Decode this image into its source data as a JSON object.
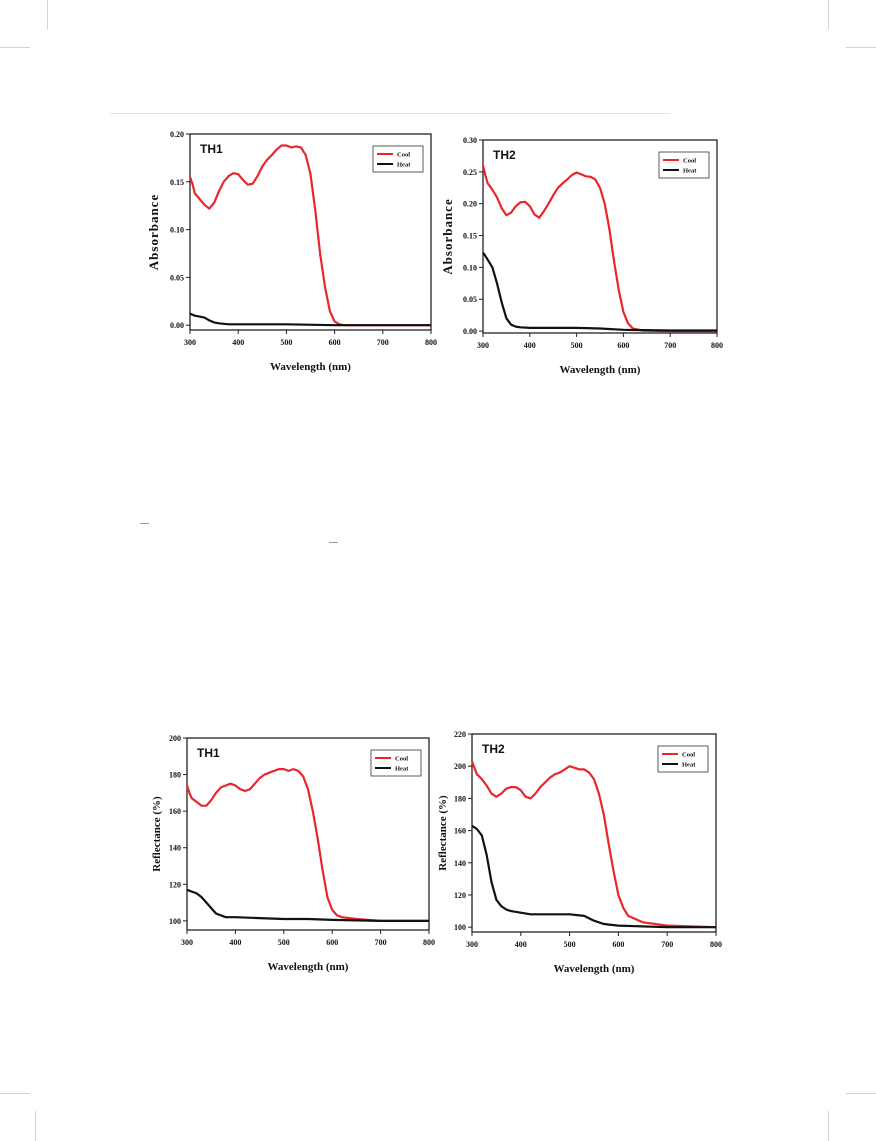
{
  "colors": {
    "cool": "#e8262b",
    "heat": "#111111",
    "frame": "#222222"
  },
  "chart_data": [
    {
      "type": "line",
      "panel_label": "TH1",
      "xlabel": "Wavelength (nm)",
      "ylabel": "Absorbance",
      "xlim": [
        300,
        800
      ],
      "ylim": [
        -0.005,
        0.2
      ],
      "xticks": [
        "300",
        "400",
        "500",
        "600",
        "700",
        "800"
      ],
      "xtick_values": [
        300,
        400,
        500,
        600,
        700,
        800
      ],
      "yticks": [
        "0.00",
        "0.05",
        "0.10",
        "0.15",
        "0.20"
      ],
      "ytick_values": [
        0,
        0.05,
        0.1,
        0.15,
        0.2
      ],
      "legend_position": "top-right",
      "series": [
        {
          "name": "Cool",
          "color": "#e8262b",
          "x": [
            300,
            305,
            310,
            320,
            330,
            340,
            350,
            360,
            370,
            380,
            390,
            400,
            410,
            420,
            430,
            440,
            450,
            460,
            470,
            480,
            490,
            500,
            510,
            520,
            530,
            540,
            550,
            560,
            570,
            580,
            590,
            600,
            610,
            620,
            650,
            700,
            800
          ],
          "y": [
            0.155,
            0.148,
            0.138,
            0.132,
            0.126,
            0.122,
            0.128,
            0.14,
            0.15,
            0.156,
            0.159,
            0.158,
            0.152,
            0.147,
            0.148,
            0.156,
            0.166,
            0.173,
            0.178,
            0.184,
            0.188,
            0.188,
            0.186,
            0.187,
            0.186,
            0.178,
            0.158,
            0.12,
            0.075,
            0.04,
            0.015,
            0.004,
            0.001,
            0,
            0,
            0,
            0
          ]
        },
        {
          "name": "Heat",
          "color": "#111111",
          "x": [
            300,
            310,
            320,
            330,
            340,
            350,
            360,
            380,
            400,
            450,
            500,
            600,
            700,
            800
          ],
          "y": [
            0.012,
            0.01,
            0.009,
            0.008,
            0.005,
            0.003,
            0.002,
            0.001,
            0.001,
            0.001,
            0.001,
            0,
            0,
            0
          ]
        }
      ]
    },
    {
      "type": "line",
      "panel_label": "TH2",
      "xlabel": "Wavelength (nm)",
      "ylabel": "Absorbance",
      "xlim": [
        300,
        800
      ],
      "ylim": [
        -0.003,
        0.3
      ],
      "xticks": [
        "300",
        "400",
        "500",
        "600",
        "700",
        "800"
      ],
      "xtick_values": [
        300,
        400,
        500,
        600,
        700,
        800
      ],
      "yticks": [
        "0.00",
        "0.05",
        "0.10",
        "0.15",
        "0.20",
        "0.25",
        "0.30"
      ],
      "ytick_values": [
        0,
        0.05,
        0.1,
        0.15,
        0.2,
        0.25,
        0.3
      ],
      "legend_position": "top-right",
      "series": [
        {
          "name": "Cool",
          "color": "#e8262b",
          "x": [
            300,
            305,
            310,
            320,
            330,
            340,
            350,
            360,
            370,
            380,
            390,
            400,
            410,
            420,
            430,
            440,
            450,
            460,
            470,
            480,
            490,
            500,
            510,
            520,
            530,
            540,
            550,
            560,
            570,
            580,
            590,
            600,
            610,
            620,
            640,
            700,
            800
          ],
          "y": [
            0.26,
            0.245,
            0.232,
            0.222,
            0.21,
            0.193,
            0.182,
            0.186,
            0.196,
            0.202,
            0.203,
            0.196,
            0.183,
            0.178,
            0.188,
            0.2,
            0.213,
            0.225,
            0.232,
            0.238,
            0.245,
            0.249,
            0.246,
            0.243,
            0.242,
            0.238,
            0.225,
            0.2,
            0.16,
            0.11,
            0.065,
            0.03,
            0.012,
            0.004,
            0.001,
            0,
            0
          ]
        },
        {
          "name": "Heat",
          "color": "#111111",
          "x": [
            300,
            305,
            310,
            320,
            330,
            340,
            350,
            360,
            370,
            380,
            400,
            450,
            500,
            550,
            600,
            700,
            800
          ],
          "y": [
            0.123,
            0.118,
            0.112,
            0.1,
            0.075,
            0.045,
            0.02,
            0.01,
            0.007,
            0.006,
            0.005,
            0.005,
            0.005,
            0.004,
            0.002,
            0.001,
            0.001
          ]
        }
      ]
    },
    {
      "type": "line",
      "panel_label": "TH1",
      "xlabel": "Wavelength (nm)",
      "ylabel": "Reflectance (%)",
      "xlim": [
        300,
        800
      ],
      "ylim": [
        95,
        200
      ],
      "xticks": [
        "300",
        "400",
        "500",
        "600",
        "700",
        "800"
      ],
      "xtick_values": [
        300,
        400,
        500,
        600,
        700,
        800
      ],
      "yticks": [
        "100",
        "120",
        "140",
        "160",
        "180",
        "200"
      ],
      "ytick_values": [
        100,
        120,
        140,
        160,
        180,
        200
      ],
      "legend_position": "top-right",
      "series": [
        {
          "name": "Cool",
          "color": "#e8262b",
          "x": [
            300,
            305,
            310,
            320,
            330,
            340,
            350,
            360,
            370,
            380,
            390,
            400,
            410,
            420,
            430,
            440,
            450,
            460,
            470,
            480,
            490,
            500,
            510,
            520,
            530,
            540,
            550,
            560,
            570,
            580,
            590,
            600,
            610,
            620,
            650,
            700,
            800
          ],
          "y": [
            174,
            170,
            167,
            165,
            163,
            163,
            166,
            170,
            173,
            174,
            175,
            174,
            172,
            171,
            172,
            175,
            178,
            180,
            181,
            182,
            183,
            183,
            182,
            183,
            182,
            179,
            172,
            160,
            145,
            128,
            113,
            106,
            103,
            102,
            101,
            100,
            100
          ]
        },
        {
          "name": "Heat",
          "color": "#111111",
          "x": [
            300,
            310,
            320,
            330,
            340,
            350,
            360,
            370,
            380,
            400,
            450,
            500,
            550,
            600,
            700,
            800
          ],
          "y": [
            117,
            116,
            115,
            113,
            110,
            107,
            104,
            103,
            102,
            102,
            101.5,
            101,
            101,
            100.5,
            100,
            100
          ]
        }
      ]
    },
    {
      "type": "line",
      "panel_label": "TH2",
      "xlabel": "Wavelength (nm)",
      "ylabel": "Reflectance (%)",
      "xlim": [
        300,
        800
      ],
      "ylim": [
        97,
        220
      ],
      "xticks": [
        "300",
        "400",
        "500",
        "600",
        "700",
        "800"
      ],
      "xtick_values": [
        300,
        400,
        500,
        600,
        700,
        800
      ],
      "yticks": [
        "100",
        "120",
        "140",
        "160",
        "180",
        "200",
        "220"
      ],
      "ytick_values": [
        100,
        120,
        140,
        160,
        180,
        200,
        220
      ],
      "legend_position": "top-right",
      "series": [
        {
          "name": "Cool",
          "color": "#e8262b",
          "x": [
            300,
            305,
            310,
            320,
            330,
            340,
            350,
            360,
            370,
            380,
            390,
            400,
            410,
            420,
            430,
            440,
            450,
            460,
            470,
            480,
            490,
            500,
            510,
            520,
            530,
            540,
            550,
            560,
            570,
            580,
            590,
            600,
            610,
            620,
            650,
            700,
            800
          ],
          "y": [
            203,
            199,
            195,
            192,
            188,
            183,
            181,
            183,
            186,
            187,
            187,
            185,
            181,
            180,
            183,
            187,
            190,
            193,
            195,
            196,
            198,
            200,
            199,
            198,
            198,
            196,
            192,
            183,
            170,
            152,
            135,
            120,
            112,
            107,
            103,
            101,
            100
          ]
        },
        {
          "name": "Heat",
          "color": "#111111",
          "x": [
            300,
            310,
            320,
            330,
            340,
            350,
            360,
            370,
            380,
            400,
            420,
            450,
            500,
            530,
            550,
            570,
            600,
            700,
            800
          ],
          "y": [
            163,
            161,
            157,
            145,
            128,
            117,
            113,
            111,
            110,
            109,
            108,
            108,
            108,
            107,
            104,
            102,
            101,
            100,
            100
          ]
        }
      ]
    }
  ]
}
